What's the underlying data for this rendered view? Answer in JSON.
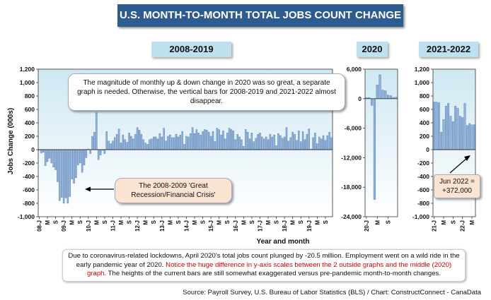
{
  "title": "U.S. MONTH-TO-MONTH TOTAL JOBS COUNT CHANGE",
  "ylabel": "Jobs Change (000s)",
  "xlabel": "Year and month",
  "panel_titles": [
    "2008-2019",
    "2020",
    "2021-2022"
  ],
  "callouts": {
    "top": "The magnitude of monthly up & down change in 2020 was so great, a separate graph is needed. Otherwise, the vertical bars for 2008-2019 and 2021-2022 almost disappear.",
    "recession_line1": "The 2008-2009 'Great",
    "recession_line2": "Recession/Financial Crisis'",
    "jun_line1": "Jun 2022 =",
    "jun_line2": "+372,000"
  },
  "note": {
    "part1": "Due to coronavirus-related lockdowns, April 2020's total jobs count plunged by -20.5 million. Employment went on a wild ride in the early pandemic year of 2020. ",
    "part2": "Notice the huge difference in y-axis scales between the 2 outside graphs and the middle (2020) graph.",
    "part3": " The heights of the current bars are still somewhat exaggerated versus pre-pandemic month-to-month changes."
  },
  "source": "Source: Payroll Survey, U.S. Bureau of Labor Statistics (BLS) / Chart: ConstructConnect - CanaData",
  "colors": {
    "bar": "#8fb0d8",
    "bar_edge": "#3e6aa3",
    "plot_top": "#cfe8f2",
    "plot_bottom": "#ffffff",
    "banner": "#2f5c8f",
    "header": "#bfe0ee"
  },
  "chart_data": [
    {
      "type": "bar",
      "panel": "2008-2019",
      "ylim": [
        -1000,
        1200
      ],
      "yticks": [
        -1000,
        -800,
        -600,
        -400,
        -200,
        0,
        200,
        400,
        600,
        800,
        1000,
        1200
      ],
      "ytick_labels": [
        "-1,000",
        "-800",
        "-600",
        "-400",
        "-200",
        "0",
        "200",
        "400",
        "600",
        "800",
        "1,000",
        "1,200"
      ],
      "xtick_labels": [
        "08-J",
        "M",
        "S",
        "09-J",
        "M",
        "S",
        "10-J",
        "M",
        "S",
        "11-J",
        "M",
        "S",
        "12-J",
        "M",
        "S",
        "13-J",
        "M",
        "S",
        "14-J",
        "M",
        "S",
        "15-J",
        "M",
        "S",
        "16-J",
        "M",
        "S",
        "17-J",
        "M",
        "S",
        "18-J",
        "M",
        "S",
        "19-J",
        "M",
        "S"
      ],
      "values": [
        -10,
        -50,
        -40,
        -240,
        -180,
        -130,
        -200,
        -260,
        -300,
        -480,
        -760,
        -710,
        -800,
        -720,
        -800,
        -700,
        -440,
        -500,
        -420,
        -230,
        -200,
        -340,
        -230,
        -120,
        10,
        -60,
        200,
        260,
        550,
        -150,
        -80,
        -10,
        -60,
        270,
        130,
        90,
        130,
        180,
        230,
        310,
        100,
        220,
        150,
        110,
        250,
        200,
        160,
        230,
        330,
        290,
        230,
        150,
        100,
        80,
        150,
        160,
        190,
        190,
        160,
        240,
        190,
        320,
        130,
        200,
        220,
        180,
        180,
        230,
        190,
        220,
        270,
        80,
        200,
        190,
        240,
        330,
        240,
        300,
        250,
        220,
        270,
        300,
        290,
        260,
        200,
        270,
        120,
        320,
        300,
        220,
        280,
        160,
        250,
        320,
        300,
        280,
        150,
        230,
        190,
        150,
        50,
        300,
        260,
        160,
        250,
        120,
        170,
        230,
        250,
        190,
        160,
        190,
        150,
        230,
        190,
        220,
        60,
        240,
        210,
        170,
        190,
        330,
        130,
        180,
        260,
        230,
        140,
        280,
        120,
        270,
        150,
        230,
        310,
        10,
        180,
        250,
        90,
        190,
        160,
        210,
        140,
        210,
        260,
        180
      ]
    },
    {
      "type": "bar",
      "panel": "2020",
      "ylim": [
        -24000,
        6000
      ],
      "yticks": [
        -24000,
        -18000,
        -12000,
        -6000,
        0,
        6000
      ],
      "ytick_labels": [
        "-24,000",
        "-18,000",
        "-12,000",
        "-6,000",
        "0",
        "6,000"
      ],
      "xtick_labels": [
        "20-J",
        "M",
        "S"
      ],
      "values": [
        210,
        250,
        -1370,
        -20500,
        2830,
        4850,
        1760,
        1580,
        720,
        610,
        260,
        310
      ]
    },
    {
      "type": "bar",
      "panel": "2021-2022",
      "ylim": [
        -1000,
        1200
      ],
      "yticks": [
        -1000,
        -800,
        -600,
        -400,
        -200,
        0,
        200,
        400,
        600,
        800,
        1000,
        1200
      ],
      "ytick_labels": [
        "-1,000",
        "-800",
        "-600",
        "-400",
        "-200",
        "0",
        "200",
        "400",
        "600",
        "800",
        "1,000",
        "1,200"
      ],
      "xtick_labels": [
        "21-J",
        "M",
        "S",
        "22-J",
        "M"
      ],
      "values": [
        710,
        710,
        700,
        260,
        450,
        650,
        690,
        500,
        420,
        650,
        620,
        500,
        480,
        690,
        360,
        390,
        370,
        372
      ]
    }
  ]
}
